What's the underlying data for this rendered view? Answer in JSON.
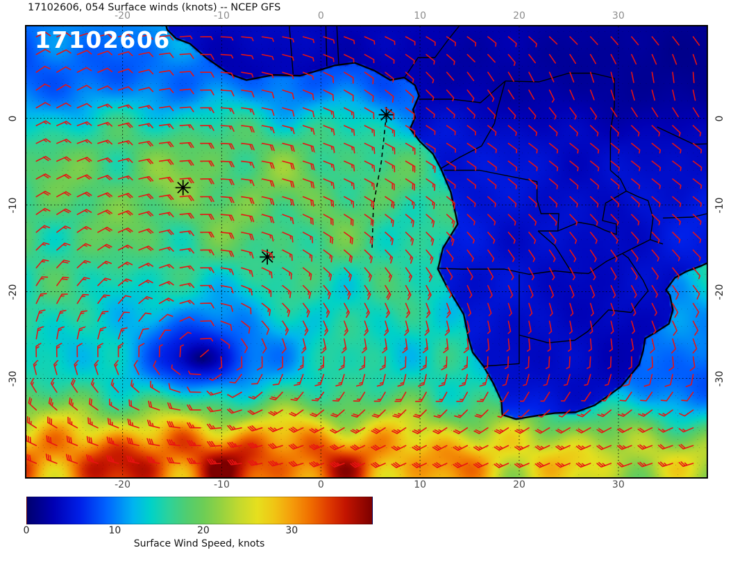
{
  "header": {
    "title": "17102606, 054 Surface winds (knots) -- NCEP GFS"
  },
  "map": {
    "overlay_label": "17102606",
    "axes": {
      "lon_ticks": [
        -20,
        -10,
        0,
        10,
        20,
        30
      ],
      "lat_ticks": [
        0,
        -10,
        -20,
        -30
      ],
      "lon_range": [
        -29.7,
        38.9
      ],
      "lat_range": [
        -41.4,
        10.6
      ]
    },
    "markers": [
      {
        "lon": 6.6,
        "lat": 0.4
      },
      {
        "lon": -13.9,
        "lat": -8.0
      },
      {
        "lon": -5.4,
        "lat": -16.0
      }
    ],
    "track": [
      [
        6.6,
        0.4
      ],
      [
        6.1,
        -5.0
      ],
      [
        5.3,
        -10.0
      ],
      [
        5.15,
        -15.3
      ]
    ],
    "colors": {
      "wind_barb": "#e81212",
      "coastline": "#000000",
      "borders": "#000000",
      "grid": "#000000",
      "marker": "#000000",
      "overlay_label": "#ffffff"
    },
    "flow_model": {
      "high_center": {
        "lon": -12,
        "lat": -28
      },
      "high_peak_speed": 15,
      "high_peak_radius": 18,
      "westerly_jet": {
        "lat": -39.5,
        "width": 7,
        "speed": 21
      },
      "trade_easterly": {
        "lat": -5,
        "width": 14,
        "speed": 5
      },
      "monsoon_westerly": {
        "lat": 4,
        "width": 5,
        "speed": 6
      },
      "indian_trade": {
        "speed": 9
      },
      "land_damping": 0.35
    },
    "coastline": [
      [
        -15.8,
        11.5
      ],
      [
        -15.5,
        10.2
      ],
      [
        -14.6,
        9.2
      ],
      [
        -13.2,
        8.6
      ],
      [
        -11.6,
        7.0
      ],
      [
        -9.2,
        5.1
      ],
      [
        -7.5,
        4.4
      ],
      [
        -4.8,
        5.0
      ],
      [
        -2.1,
        4.9
      ],
      [
        0.0,
        5.6
      ],
      [
        1.4,
        6.1
      ],
      [
        3.4,
        6.4
      ],
      [
        5.4,
        5.5
      ],
      [
        7.0,
        4.4
      ],
      [
        8.4,
        4.7
      ],
      [
        9.5,
        3.8
      ],
      [
        9.9,
        2.6
      ],
      [
        9.3,
        1.0
      ],
      [
        9.5,
        0.1
      ],
      [
        9.0,
        -1.2
      ],
      [
        10.0,
        -2.7
      ],
      [
        11.3,
        -4.1
      ],
      [
        12.1,
        -5.8
      ],
      [
        13.1,
        -8.5
      ],
      [
        13.5,
        -10.6
      ],
      [
        13.8,
        -12.2
      ],
      [
        12.3,
        -15.0
      ],
      [
        11.8,
        -17.4
      ],
      [
        12.6,
        -19.2
      ],
      [
        14.4,
        -22.6
      ],
      [
        14.9,
        -25.4
      ],
      [
        15.3,
        -27.0
      ],
      [
        16.4,
        -28.6
      ],
      [
        17.4,
        -30.6
      ],
      [
        18.2,
        -32.6
      ],
      [
        18.3,
        -34.2
      ],
      [
        19.7,
        -34.7
      ],
      [
        21.8,
        -34.3
      ],
      [
        23.6,
        -34.0
      ],
      [
        25.7,
        -33.9
      ],
      [
        27.6,
        -33.1
      ],
      [
        29.0,
        -32.0
      ],
      [
        30.3,
        -30.9
      ],
      [
        31.1,
        -29.8
      ],
      [
        32.1,
        -28.4
      ],
      [
        32.5,
        -26.8
      ],
      [
        32.7,
        -25.4
      ],
      [
        33.6,
        -24.8
      ],
      [
        35.1,
        -23.7
      ],
      [
        35.5,
        -22.1
      ],
      [
        35.2,
        -20.4
      ],
      [
        34.8,
        -19.8
      ],
      [
        35.7,
        -18.4
      ],
      [
        36.8,
        -17.7
      ],
      [
        38.4,
        -17.0
      ],
      [
        39.5,
        -16.4
      ],
      [
        40.6,
        -15.3
      ],
      [
        40.8,
        -13.7
      ],
      [
        40.4,
        -12.4
      ],
      [
        40.4,
        -10.6
      ],
      [
        39.8,
        -9.2
      ],
      [
        39.3,
        -7.1
      ],
      [
        39.0,
        -5.7
      ],
      [
        39.4,
        -4.5
      ],
      [
        40.2,
        -2.9
      ],
      [
        41.6,
        -1.7
      ],
      [
        42.8,
        0.3
      ],
      [
        44.5,
        2.0
      ],
      [
        45.0,
        12.0
      ]
    ],
    "borders": [
      [
        [
          11.8,
          -17.3
        ],
        [
          14.2,
          -17.4
        ],
        [
          18.5,
          -17.4
        ],
        [
          21.0,
          -18.0
        ],
        [
          23.6,
          -17.6
        ],
        [
          25.3,
          -17.8
        ]
      ],
      [
        [
          20.0,
          -18.0
        ],
        [
          20.0,
          -22.0
        ],
        [
          20.0,
          -28.3
        ],
        [
          16.4,
          -28.6
        ]
      ],
      [
        [
          20.0,
          -25.0
        ],
        [
          22.9,
          -25.9
        ],
        [
          25.6,
          -25.6
        ],
        [
          26.9,
          -24.6
        ],
        [
          29.0,
          -22.1
        ],
        [
          31.3,
          -22.4
        ]
      ],
      [
        [
          12.4,
          -6.0
        ],
        [
          16.0,
          -6.0
        ],
        [
          20.0,
          -6.9
        ],
        [
          21.8,
          -7.3
        ],
        [
          21.8,
          -9.4
        ],
        [
          22.2,
          -11.0
        ],
        [
          24.0,
          -11.0
        ],
        [
          23.9,
          -13.0
        ],
        [
          21.9,
          -13.0
        ]
      ],
      [
        [
          21.9,
          -13.0
        ],
        [
          23.6,
          -14.7
        ],
        [
          25.3,
          -17.8
        ],
        [
          27.0,
          -17.9
        ],
        [
          28.8,
          -16.5
        ],
        [
          30.4,
          -15.6
        ],
        [
          33.2,
          -14.0
        ],
        [
          34.5,
          -14.5
        ]
      ],
      [
        [
          30.4,
          -15.6
        ],
        [
          31.0,
          -16.1
        ],
        [
          32.5,
          -18.7
        ],
        [
          33.0,
          -19.9
        ],
        [
          32.0,
          -21.3
        ],
        [
          31.3,
          -22.4
        ]
      ],
      [
        [
          34.5,
          -11.5
        ],
        [
          37.5,
          -11.4
        ],
        [
          40.4,
          -10.6
        ]
      ],
      [
        [
          23.9,
          -13.0
        ],
        [
          26.0,
          -12.0
        ],
        [
          27.5,
          -12.3
        ],
        [
          28.6,
          -12.9
        ],
        [
          29.8,
          -13.4
        ],
        [
          29.8,
          -12.2
        ],
        [
          28.4,
          -11.8
        ],
        [
          28.7,
          -9.8
        ],
        [
          30.8,
          -8.4
        ]
      ],
      [
        [
          29.2,
          -6.0
        ],
        [
          30.2,
          -7.0
        ],
        [
          30.8,
          -8.4
        ]
      ],
      [
        [
          18.6,
          4.3
        ],
        [
          22.0,
          4.2
        ],
        [
          25.0,
          5.2
        ],
        [
          27.4,
          5.2
        ],
        [
          29.6,
          4.6
        ],
        [
          29.6,
          1.4
        ],
        [
          29.2,
          -1.5
        ],
        [
          29.2,
          -6.0
        ]
      ],
      [
        [
          8.5,
          4.8
        ],
        [
          9.8,
          7.0
        ],
        [
          11.5,
          7.0
        ],
        [
          12.8,
          9.0
        ],
        [
          14.2,
          11.0
        ]
      ],
      [
        [
          9.9,
          2.2
        ],
        [
          13.2,
          2.2
        ],
        [
          16.1,
          1.8
        ],
        [
          17.9,
          3.6
        ],
        [
          18.6,
          4.3
        ]
      ],
      [
        [
          12.1,
          -5.8
        ],
        [
          14.0,
          -4.5
        ],
        [
          16.2,
          -3.2
        ],
        [
          17.5,
          -0.6
        ],
        [
          17.8,
          1.0
        ],
        [
          18.6,
          4.3
        ]
      ],
      [
        [
          -3.2,
          10.9
        ],
        [
          -2.8,
          5.1
        ]
      ],
      [
        [
          0.5,
          10.9
        ],
        [
          0.6,
          6.0
        ]
      ],
      [
        [
          1.6,
          10.9
        ],
        [
          1.8,
          6.2
        ]
      ],
      [
        [
          40.2,
          -2.9
        ],
        [
          37.6,
          -3.0
        ],
        [
          33.9,
          -1.0
        ]
      ],
      [
        [
          33.2,
          -14.0
        ],
        [
          33.5,
          -11.5
        ],
        [
          33.0,
          -9.5
        ],
        [
          31.9,
          -9.0
        ],
        [
          30.8,
          -8.4
        ]
      ]
    ]
  },
  "colorbar": {
    "label": "Surface Wind Speed, knots",
    "ticks": [
      0,
      10,
      20,
      30
    ],
    "max": 39,
    "stops": [
      {
        "v": 0,
        "c": "#00006e"
      },
      {
        "v": 3,
        "c": "#0000b4"
      },
      {
        "v": 6,
        "c": "#0020e8"
      },
      {
        "v": 9,
        "c": "#0064ff"
      },
      {
        "v": 12,
        "c": "#00b4f0"
      },
      {
        "v": 14,
        "c": "#00d2c8"
      },
      {
        "v": 16,
        "c": "#2cd29b"
      },
      {
        "v": 18,
        "c": "#50cd70"
      },
      {
        "v": 20,
        "c": "#6ecd55"
      },
      {
        "v": 22,
        "c": "#96d240"
      },
      {
        "v": 24,
        "c": "#c3d92e"
      },
      {
        "v": 26,
        "c": "#e6df1e"
      },
      {
        "v": 28,
        "c": "#f0c414"
      },
      {
        "v": 30,
        "c": "#f59b0a"
      },
      {
        "v": 32,
        "c": "#f06e00"
      },
      {
        "v": 34,
        "c": "#e03c00"
      },
      {
        "v": 36,
        "c": "#c31400"
      },
      {
        "v": 39,
        "c": "#7d0000"
      }
    ]
  },
  "chart_data": {
    "type": "heatmap",
    "title": "17102606, 054 Surface winds (knots) -- NCEP GFS",
    "colorbar_label": "Surface Wind Speed, knots",
    "colorbar_ticks": [
      0,
      10,
      20,
      30
    ],
    "value_range_knots": [
      0,
      39
    ],
    "x_axis_lon_ticks": [
      -20,
      -10,
      0,
      10,
      20,
      30
    ],
    "y_axis_lat_ticks": [
      0,
      -10,
      -20,
      -30
    ],
    "lon_range": [
      -29.7,
      38.9
    ],
    "lat_range": [
      -41.4,
      10.6
    ],
    "overlay": "red wind barbs on ~2 degree grid, black coastlines and country borders, dotted lat/lon grid",
    "regions": [
      {
        "area": "tropical South Atlantic SE trade belt (5S-18S, west of 0E)",
        "speed_knots": 18
      },
      {
        "area": "equatorial Atlantic / Gulf of Guinea",
        "speed_knots": 8
      },
      {
        "area": "St Helena High calm center near 12W 28S",
        "speed_knots": 4
      },
      {
        "area": "Southern Ocean westerlies band 33S-41S",
        "speed_knots": 28
      },
      {
        "area": "interior southern Africa (land)",
        "speed_knots": 5
      },
      {
        "area": "Mozambique Channel trades",
        "speed_knots": 12
      }
    ]
  }
}
